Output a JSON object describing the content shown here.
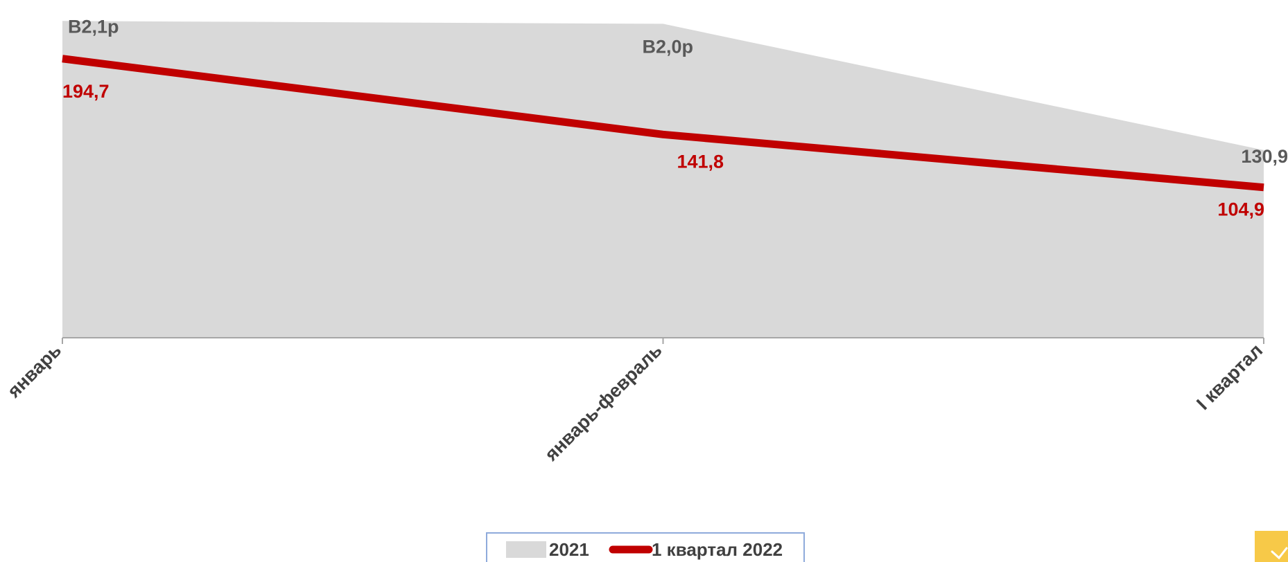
{
  "chart_data": {
    "type": "area",
    "categories": [
      "январь",
      "январь-февраль",
      "I квартал"
    ],
    "series": [
      {
        "name": "2021",
        "kind": "area",
        "values": [
          221,
          219,
          130.9
        ],
        "data_labels": [
          "В2,1р",
          "В2,0р",
          "130,9"
        ],
        "color": "#d9d9d9",
        "label_color": "#595959"
      },
      {
        "name": "1 квартал 2022",
        "kind": "line",
        "values": [
          194.7,
          141.8,
          104.9
        ],
        "data_labels": [
          "194,7",
          "141,8",
          "104,9"
        ],
        "color": "#c00000",
        "label_color": "#c00000"
      }
    ],
    "ylim": [
      0,
      225
    ],
    "grid": false,
    "legend": "bottom",
    "title": "",
    "xlabel": "",
    "ylabel": ""
  },
  "colors": {
    "axis": "#a6a6a6",
    "tick_label": "#404040",
    "legend_border": "#8eaadb",
    "corner_accent": "#f7c948"
  },
  "icons": {
    "corner": "chevron-down-icon"
  }
}
